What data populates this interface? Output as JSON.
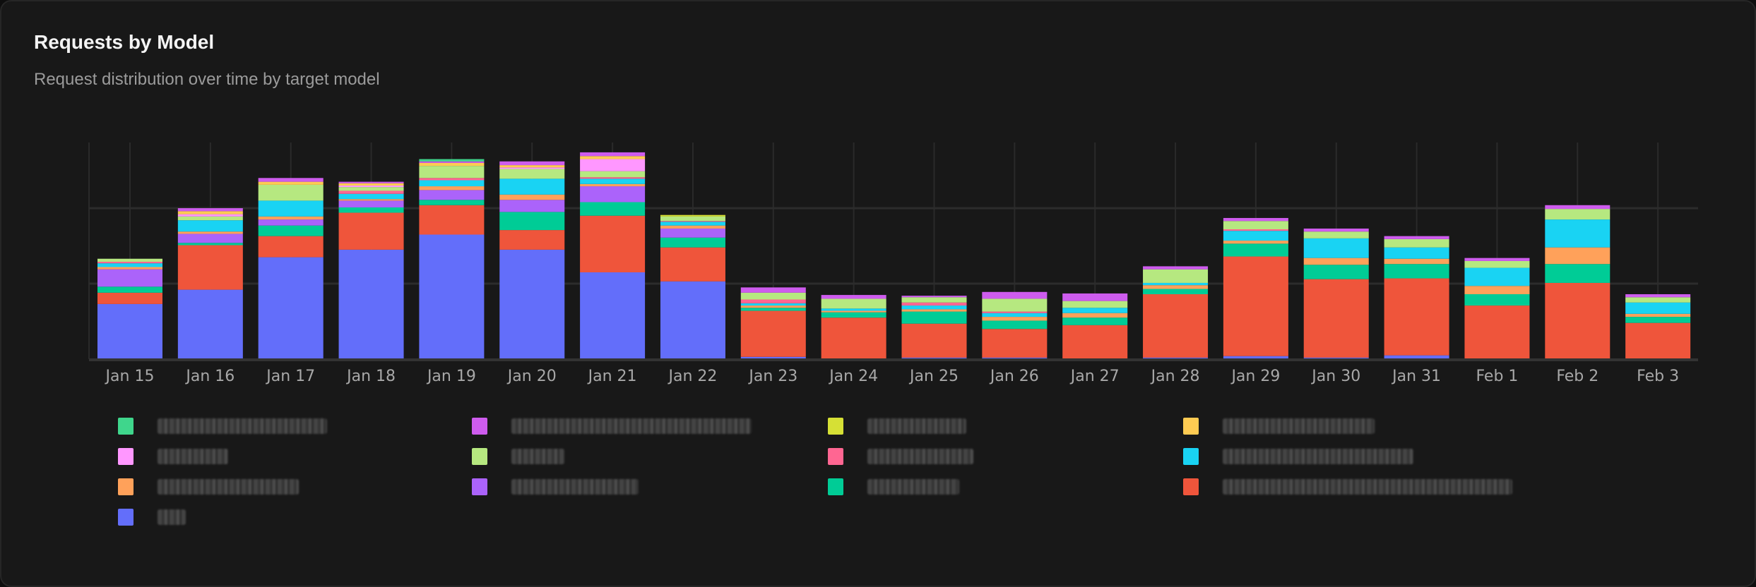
{
  "header": {
    "title": "Requests by Model",
    "subtitle": "Request distribution over time by target model"
  },
  "chart_data": {
    "type": "bar",
    "stacked": true,
    "title": "Requests by Model",
    "subtitle": "Request distribution over time by target model",
    "xlabel": "",
    "ylabel": "",
    "ylim": [
      0,
      287
    ],
    "y_gridlines": [
      100,
      200
    ],
    "y_tick_labels_shown": false,
    "grid": true,
    "legend": "bottom",
    "legend_labels_redacted": true,
    "categories": [
      "Jan 15",
      "Jan 16",
      "Jan 17",
      "Jan 18",
      "Jan 19",
      "Jan 20",
      "Jan 21",
      "Jan 22",
      "Jan 23",
      "Jan 24",
      "Jan 25",
      "Jan 26",
      "Jan 27",
      "Jan 28",
      "Jan 29",
      "Jan 30",
      "Jan 31",
      "Feb 1",
      "Feb 2",
      "Feb 3"
    ],
    "series": [
      {
        "color": "#636efa",
        "values": [
          73,
          92,
          135,
          145,
          165,
          145,
          115,
          103,
          3,
          0,
          2,
          2,
          0,
          2,
          4,
          2,
          5,
          0,
          0,
          0
        ]
      },
      {
        "color": "#ef553b",
        "values": [
          15,
          59,
          28,
          49,
          39,
          26,
          75,
          45,
          61,
          55,
          45,
          38,
          45,
          84,
          132,
          104,
          102,
          71,
          101,
          48
        ]
      },
      {
        "color": "#00cc96",
        "values": [
          8,
          3,
          14,
          7,
          7,
          24,
          18,
          13,
          4,
          7,
          16,
          11,
          10,
          7,
          17,
          19,
          19,
          15,
          25,
          8
        ]
      },
      {
        "color": "#ab63fa",
        "values": [
          23,
          12,
          8,
          9,
          13,
          16,
          21,
          12,
          0,
          0,
          0,
          0,
          0,
          0,
          0,
          0,
          0,
          0,
          0,
          0
        ]
      },
      {
        "color": "#ffa15a",
        "values": [
          3,
          3,
          4,
          2,
          5,
          7,
          3,
          4,
          3,
          2,
          3,
          5,
          6,
          5,
          4,
          9,
          7,
          11,
          22,
          4
        ]
      },
      {
        "color": "#19d3f3",
        "values": [
          5,
          15,
          21,
          7,
          8,
          21,
          7,
          5,
          3,
          3,
          5,
          5,
          7,
          3,
          13,
          26,
          15,
          24,
          37,
          15
        ]
      },
      {
        "color": "#ff6692",
        "values": [
          2,
          0,
          0,
          4,
          3,
          0,
          2,
          1,
          5,
          0,
          4,
          2,
          0,
          0,
          2,
          0,
          0,
          0,
          0,
          0
        ]
      },
      {
        "color": "#b6e880",
        "values": [
          4,
          5,
          21,
          5,
          16,
          13,
          8,
          6,
          9,
          13,
          7,
          17,
          9,
          18,
          11,
          9,
          11,
          9,
          14,
          7
        ]
      },
      {
        "color": "#ff97ff",
        "values": [
          0,
          3,
          0,
          2,
          0,
          2,
          16,
          0,
          0,
          0,
          0,
          0,
          0,
          0,
          0,
          0,
          0,
          0,
          0,
          0
        ]
      },
      {
        "color": "#fecb52",
        "values": [
          0,
          4,
          4,
          3,
          4,
          3,
          4,
          0,
          0,
          0,
          0,
          0,
          0,
          0,
          0,
          0,
          0,
          0,
          0,
          0
        ]
      },
      {
        "color": "#d6e035",
        "values": [
          0,
          0,
          0,
          0,
          0,
          0,
          0,
          2,
          0,
          0,
          0,
          0,
          0,
          0,
          0,
          0,
          0,
          0,
          0,
          0
        ]
      },
      {
        "color": "#ce5cee",
        "values": [
          0,
          4,
          5,
          2,
          2,
          5,
          5,
          0,
          7,
          5,
          2,
          9,
          10,
          4,
          4,
          4,
          4,
          4,
          5,
          4
        ]
      },
      {
        "color": "#3fd68c",
        "values": [
          0,
          0,
          0,
          0,
          3,
          0,
          0,
          0,
          0,
          0,
          0,
          0,
          0,
          0,
          0,
          0,
          0,
          0,
          0,
          0
        ]
      }
    ]
  }
}
